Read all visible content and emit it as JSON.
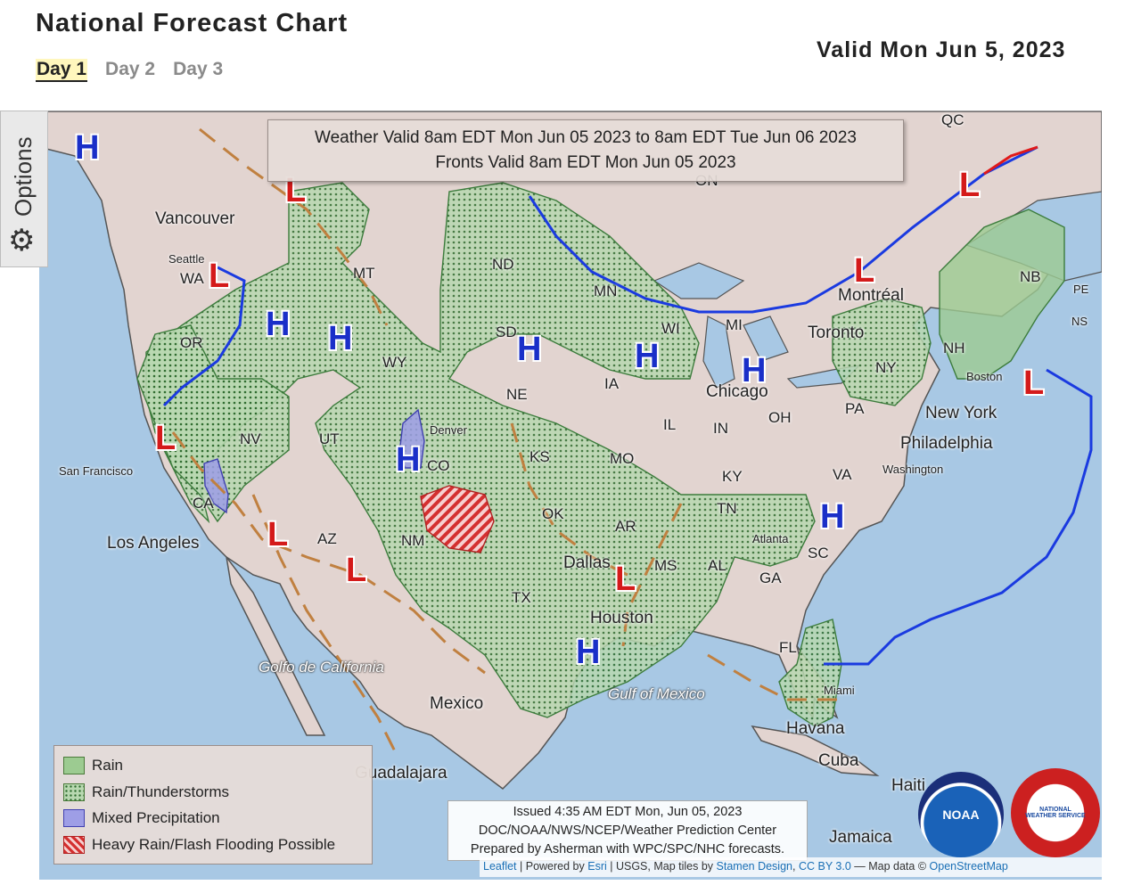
{
  "header": {
    "title": "National Forecast Chart",
    "valid_date": "Valid Mon Jun 5, 2023"
  },
  "tabs": [
    {
      "label": "Day 1",
      "active": true
    },
    {
      "label": "Day 2",
      "active": false
    },
    {
      "label": "Day 3",
      "active": false
    }
  ],
  "options": {
    "label": "Options"
  },
  "valid_box": {
    "line1": "Weather Valid 8am EDT Mon Jun 05 2023 to 8am EDT Tue Jun 06 2023",
    "line2": "Fronts Valid 8am EDT Mon Jun 05 2023"
  },
  "legend": [
    {
      "label": "Rain",
      "type": "rain",
      "color": "#9ccb91"
    },
    {
      "label": "Rain/Thunderstorms",
      "type": "thunderstorms",
      "color": "#b8d8b0"
    },
    {
      "label": "Mixed Precipitation",
      "type": "mixed",
      "color": "#9e9ee6"
    },
    {
      "label": "Heavy Rain/Flash Flooding Possible",
      "type": "heavy",
      "color": "#d43030"
    }
  ],
  "issued": {
    "line1": "Issued 4:35 AM EDT Mon, Jun 05, 2023",
    "line2": "DOC/NOAA/NWS/NCEP/Weather Prediction Center",
    "line3": "Prepared by Asherman with WPC/SPC/NHC forecasts."
  },
  "attribution": {
    "leaflet": "Leaflet",
    "powered_by": "| Powered by",
    "esri": "Esri",
    "tiles_text": "| USGS, Map tiles by",
    "stamen": "Stamen Design",
    "cc": "CC BY 3.0",
    "data_text": "— Map data ©",
    "osm": "OpenStreetMap"
  },
  "logos": {
    "noaa": "NOAA",
    "nws": "NATIONAL WEATHER SERVICE"
  },
  "places": {
    "vancouver": "Vancouver",
    "seattle": "Seattle",
    "wa": "WA",
    "or": "OR",
    "mt": "MT",
    "wy": "WY",
    "nv": "NV",
    "ut": "UT",
    "co": "CO",
    "denver": "Denver",
    "nd": "ND",
    "sd": "SD",
    "ne": "NE",
    "ks": "KS",
    "ia": "IA",
    "mn": "MN",
    "wi": "WI",
    "mi": "MI",
    "il": "IL",
    "in": "IN",
    "oh": "OH",
    "mo": "MO",
    "ky": "KY",
    "tn": "TN",
    "ar": "AR",
    "ok": "OK",
    "tx": "TX",
    "nm": "NM",
    "az": "AZ",
    "ca": "CA",
    "ms": "MS",
    "al": "AL",
    "ga": "GA",
    "sc": "SC",
    "fl": "FL",
    "va": "VA",
    "pa": "PA",
    "ny": "NY",
    "nh": "NH",
    "nb": "NB",
    "ns": "NS",
    "pe": "PE",
    "qc": "QC",
    "on": "ON",
    "san_francisco": "San Francisco",
    "los_angeles": "Los Angeles",
    "chicago": "Chicago",
    "toronto": "Toronto",
    "montreal": "Montréal",
    "boston": "Boston",
    "new_york": "New York",
    "philadelphia": "Philadelphia",
    "washington": "Washington",
    "atlanta": "Atlanta",
    "dallas": "Dallas",
    "houston": "Houston",
    "miami": "Miami",
    "havana": "Havana",
    "cuba": "Cuba",
    "haiti": "Haiti",
    "jamaica": "Jamaica",
    "mexico": "Mexico",
    "guadalajara": "Guadalajara",
    "gulf_of_mexico": "Gulf of Mexico",
    "golfo_de_california": "Golfo de California"
  },
  "pressure_centers": [
    {
      "type": "H"
    },
    {
      "type": "H"
    },
    {
      "type": "H"
    },
    {
      "type": "H"
    },
    {
      "type": "H"
    },
    {
      "type": "H"
    },
    {
      "type": "H"
    },
    {
      "type": "H"
    },
    {
      "type": "H"
    },
    {
      "type": "L"
    },
    {
      "type": "L"
    },
    {
      "type": "L"
    },
    {
      "type": "L"
    },
    {
      "type": "L"
    },
    {
      "type": "L"
    },
    {
      "type": "L"
    },
    {
      "type": "L"
    },
    {
      "type": "L"
    }
  ],
  "colors": {
    "high": "#1a2fc8",
    "low": "#d41a1a",
    "cold_front": "#1a3ae0",
    "warm_front": "#e01a1a",
    "trough": "#c08040",
    "water": "#a8c8e4",
    "land": "#e2d4d0"
  }
}
